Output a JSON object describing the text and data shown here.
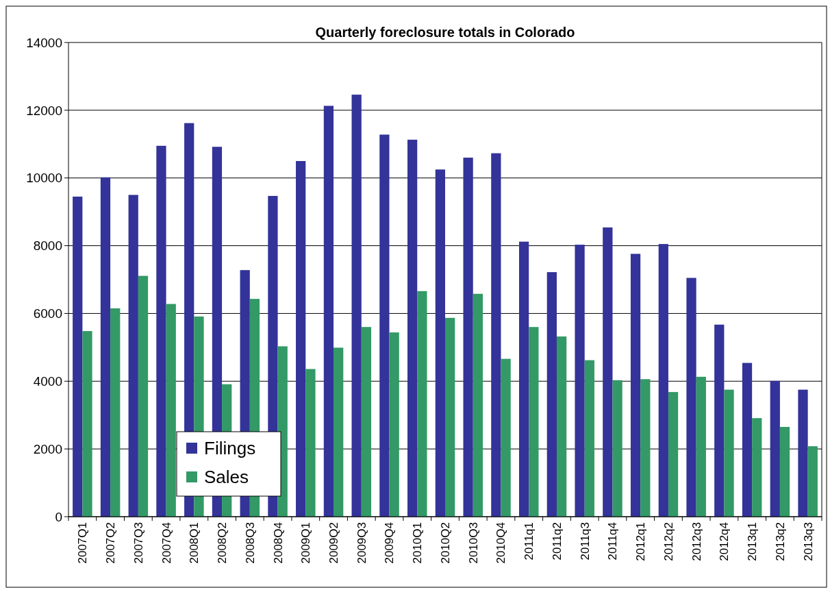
{
  "chart_data": {
    "type": "bar",
    "title": "Quarterly foreclosure totals in Colorado",
    "categories": [
      "2007Q1",
      "2007Q2",
      "2007Q3",
      "2007Q4",
      "2008Q1",
      "2008Q2",
      "2008Q3",
      "2008Q4",
      "2009Q1",
      "2009Q2",
      "2009Q3",
      "2009Q4",
      "2010Q1",
      "2010Q2",
      "2010Q3",
      "2010Q4",
      "2011q1",
      "2011q2",
      "2011q3",
      "2011q4",
      "2012q1",
      "2012q2",
      "2012q3",
      "2012q4",
      "2013q1",
      "2013q2",
      "2013q3"
    ],
    "series": [
      {
        "name": "Filings",
        "color": "#333399",
        "values": [
          9450,
          10020,
          9500,
          10950,
          11620,
          10920,
          7280,
          9470,
          10500,
          12130,
          12460,
          11280,
          11130,
          10250,
          10600,
          10730,
          8120,
          7220,
          8030,
          8540,
          7760,
          8050,
          7050,
          5670,
          4540,
          4010,
          3750
        ]
      },
      {
        "name": "Sales",
        "color": "#339966",
        "values": [
          5480,
          6150,
          7110,
          6280,
          5910,
          3910,
          6430,
          5030,
          4360,
          4990,
          5600,
          5440,
          6660,
          5870,
          6580,
          4660,
          5600,
          5320,
          4620,
          4030,
          4060,
          3680,
          4130,
          3750,
          2910,
          2650,
          2080
        ]
      }
    ],
    "ylim": [
      0,
      14000
    ],
    "yticks": [
      0,
      2000,
      4000,
      6000,
      8000,
      10000,
      12000,
      14000
    ],
    "grid": "y",
    "legend": "bottom left"
  }
}
